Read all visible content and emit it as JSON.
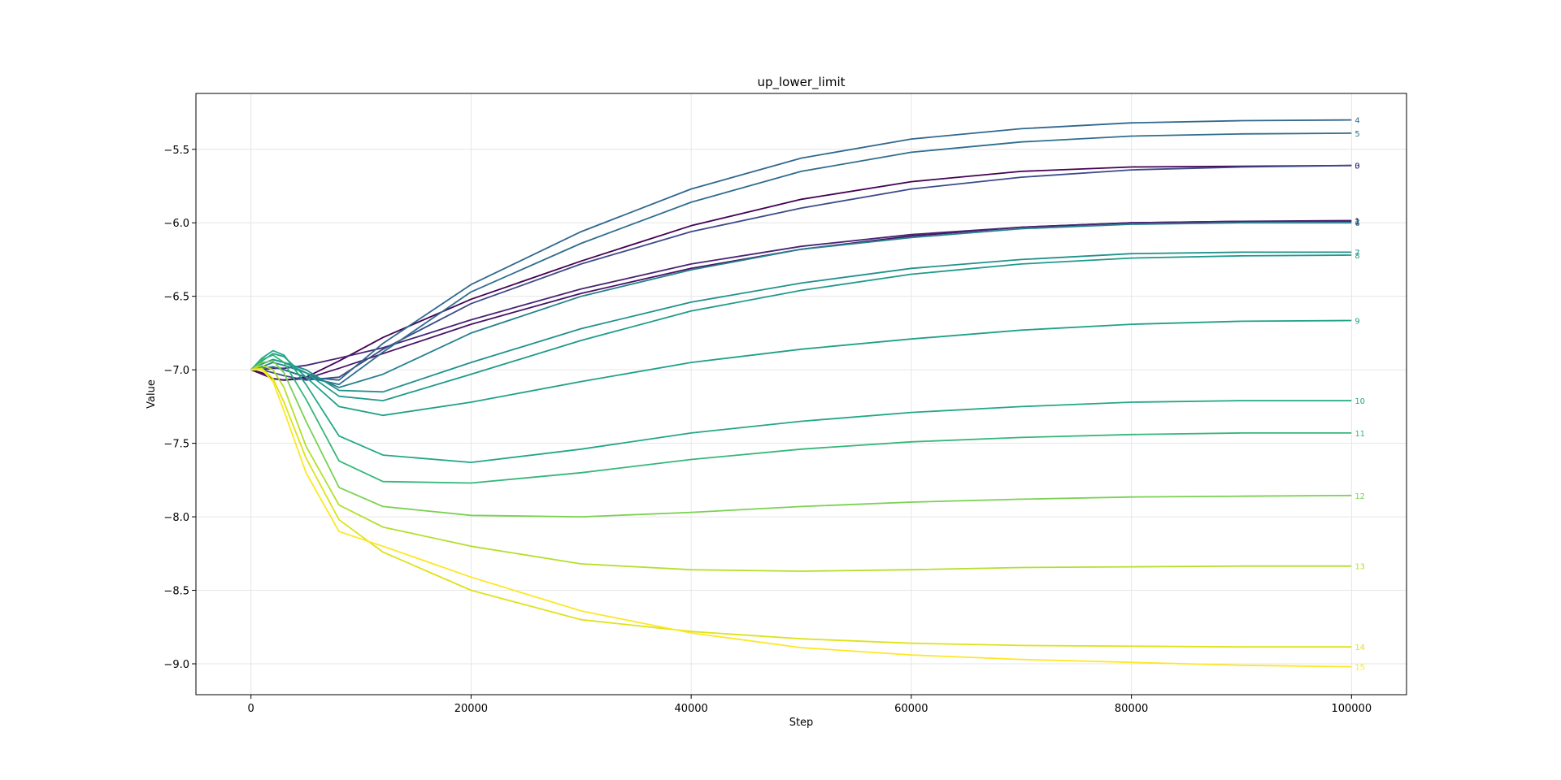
{
  "chart_data": {
    "type": "line",
    "title": "up_lower_limit",
    "xlabel": "Step",
    "ylabel": "Value",
    "xlim": [
      -5000,
      105000
    ],
    "ylim": [
      -9.21,
      -5.12
    ],
    "xticks": [
      0,
      20000,
      40000,
      60000,
      80000,
      100000
    ],
    "xtick_labels": [
      "0",
      "20000",
      "40000",
      "60000",
      "80000",
      "100000"
    ],
    "yticks": [
      -5.5,
      -6.0,
      -6.5,
      -7.0,
      -7.5,
      -8.0,
      -8.5,
      -9.0
    ],
    "ytick_labels": [
      "−5.5",
      "−6.0",
      "−6.5",
      "−7.0",
      "−7.5",
      "−8.0",
      "−8.5",
      "−9.0"
    ],
    "grid": true,
    "series": [
      {
        "name": "0",
        "color": "#440154",
        "x": [
          0,
          1000,
          2000,
          3000,
          5000,
          8000,
          12000,
          20000,
          30000,
          40000,
          50000,
          60000,
          70000,
          80000,
          90000,
          100000
        ],
        "y": [
          -7.0,
          -7.02,
          -7.06,
          -7.07,
          -7.05,
          -6.94,
          -6.78,
          -6.52,
          -6.26,
          -6.02,
          -5.84,
          -5.72,
          -5.65,
          -5.62,
          -5.615,
          -5.61
        ]
      },
      {
        "name": "1",
        "color": "#471365",
        "x": [
          0,
          1000,
          2000,
          3000,
          5000,
          8000,
          12000,
          20000,
          30000,
          40000,
          50000,
          60000,
          70000,
          80000,
          90000,
          100000
        ],
        "y": [
          -7.0,
          -7.03,
          -7.06,
          -7.07,
          -7.06,
          -6.99,
          -6.89,
          -6.69,
          -6.48,
          -6.31,
          -6.18,
          -6.09,
          -6.03,
          -6.0,
          -5.99,
          -5.985
        ]
      },
      {
        "name": "2",
        "color": "#482475",
        "x": [
          0,
          1000,
          2000,
          3000,
          5000,
          8000,
          12000,
          20000,
          30000,
          40000,
          50000,
          60000,
          70000,
          80000,
          90000,
          100000
        ],
        "y": [
          -7.0,
          -7.0,
          -6.99,
          -6.99,
          -6.97,
          -6.92,
          -6.85,
          -6.66,
          -6.45,
          -6.28,
          -6.16,
          -6.08,
          -6.03,
          -6.0,
          -5.99,
          -5.99
        ]
      },
      {
        "name": "3",
        "color": "#3e4a89",
        "x": [
          0,
          1000,
          2000,
          3000,
          5000,
          8000,
          12000,
          20000,
          30000,
          40000,
          50000,
          60000,
          70000,
          80000,
          90000,
          100000
        ],
        "y": [
          -7.0,
          -7.0,
          -7.02,
          -7.04,
          -7.07,
          -7.05,
          -6.86,
          -6.55,
          -6.28,
          -6.06,
          -5.9,
          -5.77,
          -5.69,
          -5.64,
          -5.62,
          -5.61
        ]
      },
      {
        "name": "4",
        "color": "#31688e",
        "x": [
          0,
          1000,
          2000,
          3000,
          5000,
          8000,
          12000,
          20000,
          30000,
          40000,
          50000,
          60000,
          70000,
          80000,
          90000,
          100000
        ],
        "y": [
          -7.0,
          -6.99,
          -6.98,
          -7.0,
          -7.05,
          -7.07,
          -6.82,
          -6.42,
          -6.06,
          -5.77,
          -5.56,
          -5.43,
          -5.36,
          -5.32,
          -5.305,
          -5.3
        ]
      },
      {
        "name": "5",
        "color": "#2f6d8e",
        "x": [
          0,
          1000,
          2000,
          3000,
          5000,
          8000,
          12000,
          20000,
          30000,
          40000,
          50000,
          60000,
          70000,
          80000,
          90000,
          100000
        ],
        "y": [
          -7.0,
          -6.99,
          -6.98,
          -7.0,
          -7.05,
          -7.1,
          -6.88,
          -6.47,
          -6.14,
          -5.86,
          -5.65,
          -5.52,
          -5.45,
          -5.41,
          -5.395,
          -5.39
        ]
      },
      {
        "name": "6",
        "color": "#26828e",
        "x": [
          0,
          1000,
          2000,
          3000,
          5000,
          8000,
          12000,
          20000,
          30000,
          40000,
          50000,
          60000,
          70000,
          80000,
          90000,
          100000
        ],
        "y": [
          -7.0,
          -6.98,
          -6.95,
          -6.97,
          -7.02,
          -7.12,
          -7.03,
          -6.75,
          -6.5,
          -6.32,
          -6.18,
          -6.1,
          -6.04,
          -6.01,
          -6.0,
          -6.0
        ]
      },
      {
        "name": "7",
        "color": "#21918c",
        "x": [
          0,
          1000,
          2000,
          3000,
          5000,
          8000,
          12000,
          20000,
          30000,
          40000,
          50000,
          60000,
          70000,
          80000,
          90000,
          100000
        ],
        "y": [
          -7.0,
          -6.96,
          -6.93,
          -6.95,
          -7.0,
          -7.14,
          -7.15,
          -6.95,
          -6.72,
          -6.54,
          -6.41,
          -6.31,
          -6.25,
          -6.21,
          -6.2,
          -6.2
        ]
      },
      {
        "name": "8",
        "color": "#1f9a8a",
        "x": [
          0,
          1000,
          2000,
          3000,
          5000,
          8000,
          12000,
          20000,
          30000,
          40000,
          50000,
          60000,
          70000,
          80000,
          90000,
          100000
        ],
        "y": [
          -7.0,
          -6.96,
          -6.93,
          -6.95,
          -7.02,
          -7.18,
          -7.21,
          -7.03,
          -6.8,
          -6.6,
          -6.46,
          -6.35,
          -6.28,
          -6.24,
          -6.225,
          -6.22
        ]
      },
      {
        "name": "9",
        "color": "#1fa188",
        "x": [
          0,
          1000,
          2000,
          3000,
          5000,
          8000,
          12000,
          20000,
          30000,
          40000,
          50000,
          60000,
          70000,
          80000,
          90000,
          100000
        ],
        "y": [
          -7.0,
          -6.94,
          -6.89,
          -6.91,
          -7.05,
          -7.25,
          -7.31,
          -7.22,
          -7.08,
          -6.95,
          -6.86,
          -6.79,
          -6.73,
          -6.69,
          -6.67,
          -6.665
        ]
      },
      {
        "name": "10",
        "color": "#22a884",
        "x": [
          0,
          1000,
          2000,
          3000,
          5000,
          8000,
          12000,
          20000,
          30000,
          40000,
          50000,
          60000,
          70000,
          80000,
          90000,
          100000
        ],
        "y": [
          -7.0,
          -6.92,
          -6.87,
          -6.9,
          -7.1,
          -7.45,
          -7.58,
          -7.63,
          -7.54,
          -7.43,
          -7.35,
          -7.29,
          -7.25,
          -7.22,
          -7.21,
          -7.21
        ]
      },
      {
        "name": "11",
        "color": "#35b779",
        "x": [
          0,
          1000,
          2000,
          3000,
          5000,
          8000,
          12000,
          20000,
          30000,
          40000,
          50000,
          60000,
          70000,
          80000,
          90000,
          100000
        ],
        "y": [
          -7.0,
          -6.93,
          -6.9,
          -6.95,
          -7.2,
          -7.62,
          -7.76,
          -7.77,
          -7.7,
          -7.61,
          -7.54,
          -7.49,
          -7.46,
          -7.44,
          -7.43,
          -7.43
        ]
      },
      {
        "name": "12",
        "color": "#7ad151",
        "x": [
          0,
          1000,
          2000,
          3000,
          5000,
          8000,
          12000,
          20000,
          30000,
          40000,
          50000,
          60000,
          70000,
          80000,
          90000,
          100000
        ],
        "y": [
          -7.0,
          -6.95,
          -6.94,
          -7.02,
          -7.35,
          -7.8,
          -7.93,
          -7.99,
          -8.0,
          -7.97,
          -7.93,
          -7.9,
          -7.88,
          -7.865,
          -7.86,
          -7.855
        ]
      },
      {
        "name": "13",
        "color": "#b5de2b",
        "x": [
          0,
          1000,
          2000,
          3000,
          5000,
          8000,
          12000,
          20000,
          30000,
          40000,
          50000,
          60000,
          70000,
          80000,
          90000,
          100000
        ],
        "y": [
          -7.0,
          -6.97,
          -7.0,
          -7.12,
          -7.52,
          -7.92,
          -8.07,
          -8.2,
          -8.32,
          -8.36,
          -8.37,
          -8.36,
          -8.345,
          -8.34,
          -8.335,
          -8.335
        ]
      },
      {
        "name": "14",
        "color": "#dde318",
        "x": [
          0,
          1000,
          2000,
          3000,
          5000,
          8000,
          12000,
          20000,
          30000,
          40000,
          50000,
          60000,
          70000,
          80000,
          90000,
          100000
        ],
        "y": [
          -7.0,
          -6.99,
          -7.06,
          -7.22,
          -7.6,
          -8.02,
          -8.24,
          -8.5,
          -8.7,
          -8.78,
          -8.83,
          -8.86,
          -8.875,
          -8.88,
          -8.885,
          -8.885
        ]
      },
      {
        "name": "15",
        "color": "#fde725",
        "x": [
          0,
          1000,
          2000,
          3000,
          5000,
          8000,
          12000,
          20000,
          30000,
          40000,
          50000,
          60000,
          70000,
          80000,
          90000,
          100000
        ],
        "y": [
          -7.0,
          -7.0,
          -7.08,
          -7.28,
          -7.7,
          -8.1,
          -8.2,
          -8.41,
          -8.64,
          -8.79,
          -8.89,
          -8.94,
          -8.97,
          -8.99,
          -9.01,
          -9.02
        ]
      }
    ]
  }
}
